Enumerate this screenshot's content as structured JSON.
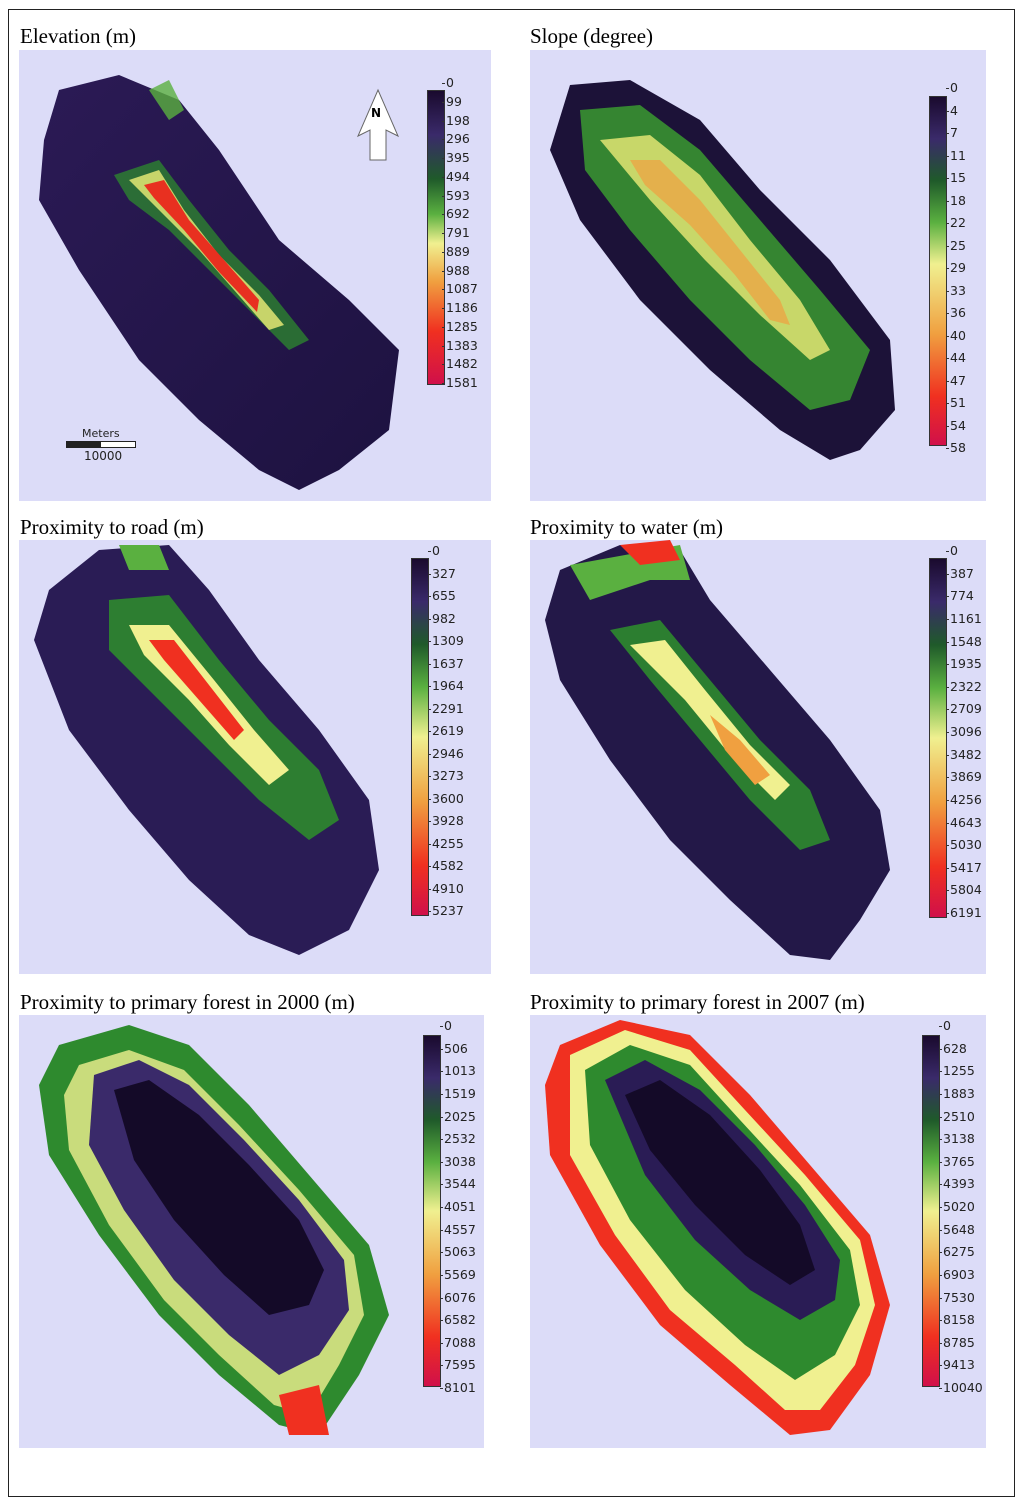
{
  "panels": [
    {
      "title": "Elevation (m)",
      "ticks": [
        "0",
        "99",
        "198",
        "296",
        "395",
        "494",
        "593",
        "692",
        "791",
        "889",
        "988",
        "1087",
        "1186",
        "1285",
        "1383",
        "1482",
        "1581"
      ],
      "north_label": "N",
      "scale_label_top": "Meters",
      "scale_label_bottom": "10000"
    },
    {
      "title": "Slope (degree)",
      "ticks": [
        "0",
        "4",
        "7",
        "11",
        "15",
        "18",
        "22",
        "25",
        "29",
        "33",
        "36",
        "40",
        "44",
        "47",
        "51",
        "54",
        "58"
      ]
    },
    {
      "title": "Proximity to road (m)",
      "ticks": [
        "0",
        "327",
        "655",
        "982",
        "1309",
        "1637",
        "1964",
        "2291",
        "2619",
        "2946",
        "3273",
        "3600",
        "3928",
        "4255",
        "4582",
        "4910",
        "5237"
      ]
    },
    {
      "title": "Proximity to water (m)",
      "ticks": [
        "0",
        "387",
        "774",
        "1161",
        "1548",
        "1935",
        "2322",
        "2709",
        "3096",
        "3482",
        "3869",
        "4256",
        "4643",
        "5030",
        "5417",
        "5804",
        "6191"
      ]
    },
    {
      "title": "Proximity to primary forest in 2000 (m)",
      "ticks": [
        "0",
        "506",
        "1013",
        "1519",
        "2025",
        "2532",
        "3038",
        "3544",
        "4051",
        "4557",
        "5063",
        "5569",
        "6076",
        "6582",
        "7088",
        "7595",
        "8101"
      ]
    },
    {
      "title": "Proximity to primary forest in 2007 (m)",
      "ticks": [
        "0",
        "628",
        "1255",
        "1883",
        "2510",
        "3138",
        "3765",
        "4393",
        "5020",
        "5648",
        "6275",
        "6903",
        "7530",
        "8158",
        "8785",
        "9413",
        "10040"
      ]
    }
  ],
  "colors": {
    "panel_background": "#dcdcf8",
    "ramp": [
      "#1a0a2e",
      "#3a2a6a",
      "#1f5a2a",
      "#2e8a2e",
      "#b8e060",
      "#f0f090",
      "#f0a040",
      "#f03020",
      "#d0104a"
    ]
  }
}
